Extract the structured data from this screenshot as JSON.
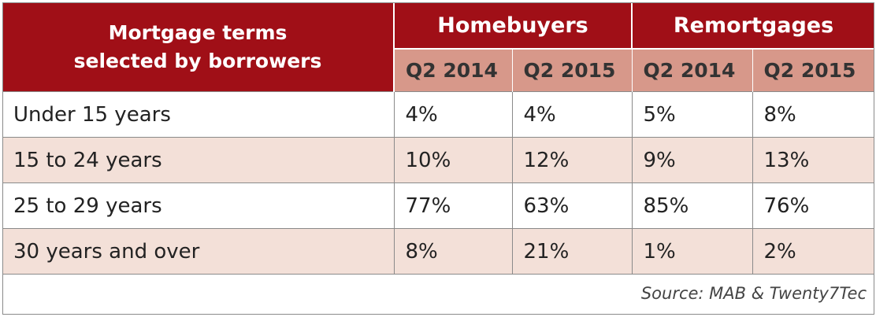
{
  "chart_data": {
    "type": "table",
    "title": "Mortgage terms selected by borrowers",
    "title_lines": [
      "Mortgage terms",
      "selected by borrowers"
    ],
    "column_groups": [
      {
        "name": "Homebuyers",
        "columns": [
          "Q2 2014",
          "Q2 2015"
        ]
      },
      {
        "name": "Remortgages",
        "columns": [
          "Q2 2014",
          "Q2 2015"
        ]
      }
    ],
    "rows": [
      {
        "label": "Under 15 years",
        "values": [
          "4%",
          "4%",
          "5%",
          "8%"
        ]
      },
      {
        "label": "15 to 24 years",
        "values": [
          "10%",
          "12%",
          "9%",
          "13%"
        ]
      },
      {
        "label": "25 to 29 years",
        "values": [
          "77%",
          "63%",
          "85%",
          "76%"
        ]
      },
      {
        "label": "30 years and over",
        "values": [
          "8%",
          "21%",
          "1%",
          "2%"
        ]
      }
    ],
    "source": "Source: MAB & Twenty7Tec"
  },
  "colors": {
    "header": "#a00f17",
    "subheader": "#d7988a",
    "alt_row": "#f3e0d8",
    "border": "#8a8a8a"
  }
}
